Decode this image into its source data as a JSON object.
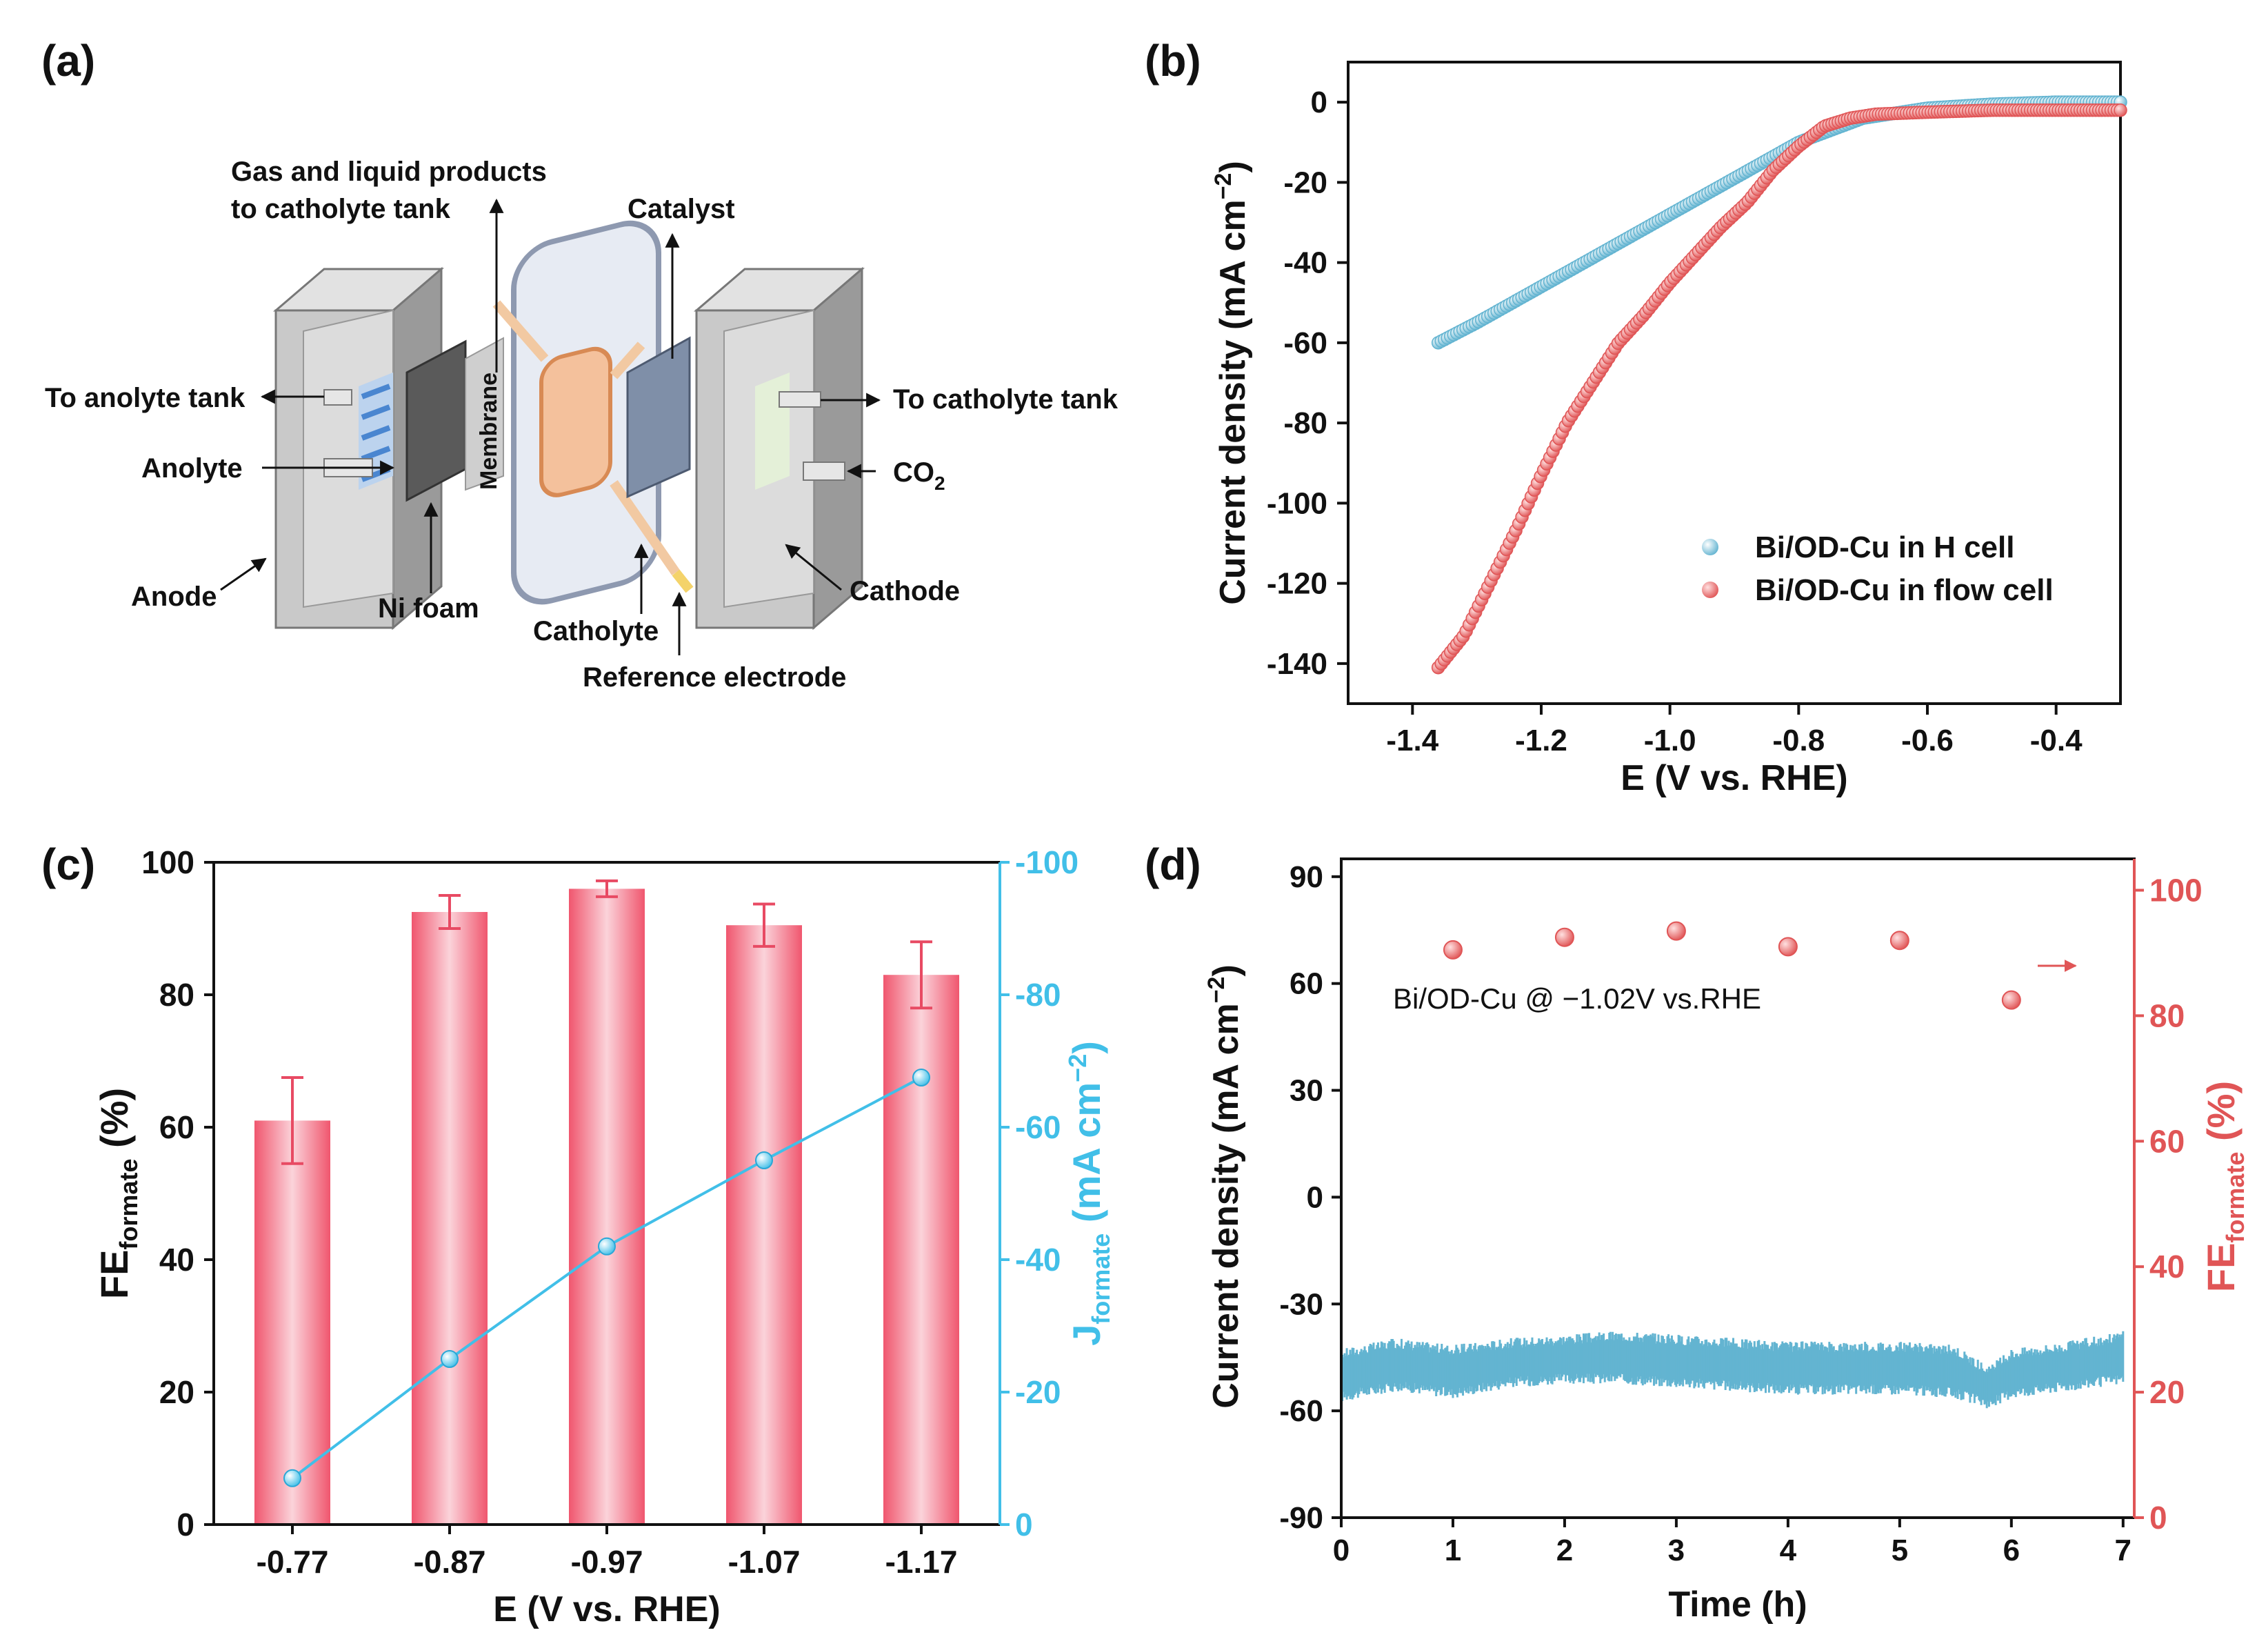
{
  "figure": {
    "panels": [
      "(a)",
      "(b)",
      "(c)",
      "(d)"
    ]
  },
  "schematic": {
    "labels": {
      "products_line1": "Gas and liquid products",
      "products_line2": "to catholyte tank",
      "catalyst": "Catalyst",
      "to_anolyte": "To anolyte tank",
      "to_catholyte": "To catholyte tank",
      "anolyte": "Anolyte",
      "membrane": "Membrane",
      "co2": "CO",
      "co2_sub": "2",
      "anode": "Anode",
      "ni_foam": "Ni foam",
      "catholyte": "Catholyte",
      "cathode": "Cathode",
      "reference": "Reference electrode"
    }
  },
  "chart_data": [
    {
      "panel": "(b)",
      "type": "scatter",
      "xlabel": "E (V vs. RHE)",
      "ylabel": "Current density (mA cm",
      "ylabel_sup": "−2",
      "ylabel_close": ")",
      "xlim": [
        -1.5,
        -0.3
      ],
      "ylim": [
        -150,
        10
      ],
      "xticks": [
        -1.4,
        -1.2,
        -1.0,
        -0.8,
        -0.6,
        -0.4
      ],
      "xtick_labels": [
        "-1.4",
        "-1.2",
        "-1.0",
        "-0.8",
        "-0.6",
        "-0.4"
      ],
      "yticks": [
        0,
        -20,
        -40,
        -60,
        -80,
        -100,
        -120,
        -140
      ],
      "ytick_labels": [
        "0",
        "-20",
        "-40",
        "-60",
        "-80",
        "-100",
        "-120",
        "-140"
      ],
      "legend_position": "bottom-right",
      "series": [
        {
          "name": "Bi/OD-Cu in H cell",
          "color": "#63b4d1",
          "x": [
            -1.36,
            -1.3,
            -1.2,
            -1.1,
            -1.0,
            -0.9,
            -0.8,
            -0.7,
            -0.6,
            -0.5,
            -0.4,
            -0.3
          ],
          "y": [
            -60,
            -55,
            -46,
            -37,
            -28,
            -19,
            -10,
            -4,
            -1.5,
            -0.5,
            0,
            0
          ]
        },
        {
          "name": "Bi/OD-Cu in flow cell",
          "color": "#e05556",
          "x": [
            -1.36,
            -1.32,
            -1.28,
            -1.24,
            -1.2,
            -1.16,
            -1.12,
            -1.08,
            -1.04,
            -1.0,
            -0.96,
            -0.92,
            -0.88,
            -0.84,
            -0.8,
            -0.76,
            -0.72,
            -0.68,
            -0.6,
            -0.5,
            -0.4,
            -0.3
          ],
          "y": [
            -141,
            -133,
            -120,
            -107,
            -93,
            -80,
            -70,
            -60,
            -53,
            -45,
            -38,
            -31,
            -25,
            -17,
            -11,
            -6,
            -4,
            -3,
            -2.5,
            -2,
            -2,
            -2
          ]
        }
      ]
    },
    {
      "panel": "(c)",
      "type": "bar",
      "xlabel": "E (V vs. RHE)",
      "ylabel_main": "FE",
      "ylabel_sub": "formate",
      "ylabel_unit": " (%)",
      "y2label_main": "J",
      "y2label_sub": "formate",
      "y2label_unit": " (mA cm",
      "y2label_sup": "−2",
      "y2label_close": ")",
      "categories": [
        "-0.77",
        "-0.87",
        "-0.97",
        "-1.07",
        "-1.17"
      ],
      "ylim": [
        0,
        100
      ],
      "yticks": [
        0,
        20,
        40,
        60,
        80,
        100
      ],
      "ytick_labels": [
        "0",
        "20",
        "40",
        "60",
        "80",
        "100"
      ],
      "y2lim": [
        0,
        -100
      ],
      "y2ticks": [
        0,
        -20,
        -40,
        -60,
        -80,
        -100
      ],
      "y2tick_labels": [
        "0",
        "-20",
        "-40",
        "-60",
        "-80",
        "-100"
      ],
      "bar_color": "#f0566e",
      "line_color": "#41bfe8",
      "series": [
        {
          "name": "FE formate (%)",
          "values": [
            61,
            92.5,
            96,
            90.5,
            83
          ],
          "errors": [
            6.5,
            2.5,
            1.2,
            3.2,
            5
          ]
        },
        {
          "name": "J formate (mA cm-2)",
          "values": [
            -7,
            -25,
            -42,
            -55,
            -67.5
          ]
        }
      ]
    },
    {
      "panel": "(d)",
      "type": "scatter",
      "xlabel": "Time (h)",
      "ylabel": "Current density (mA cm",
      "ylabel_sup": "−2",
      "ylabel_close": ")",
      "y2label_main": "FE",
      "y2label_sub": "formate",
      "y2label_unit": " (%)",
      "annotation": "Bi/OD-Cu @ −1.02V vs.RHE",
      "xlim": [
        0,
        7.1
      ],
      "xticks": [
        0,
        1,
        2,
        3,
        4,
        5,
        6,
        7
      ],
      "xtick_labels": [
        "0",
        "1",
        "2",
        "3",
        "4",
        "5",
        "6",
        "7"
      ],
      "ylim": [
        -90,
        95
      ],
      "yticks": [
        -90,
        -60,
        -30,
        0,
        30,
        60,
        90
      ],
      "ytick_labels": [
        "-90",
        "-60",
        "-30",
        "0",
        "30",
        "60",
        "90"
      ],
      "y2lim": [
        0,
        105
      ],
      "y2ticks": [
        0,
        20,
        40,
        60,
        80,
        100
      ],
      "y2tick_labels": [
        "0",
        "20",
        "40",
        "60",
        "80",
        "100"
      ],
      "series": [
        {
          "name": "Current density",
          "color": "#63b4d1",
          "x": [
            0,
            0.5,
            1,
            1.5,
            2,
            2.5,
            3,
            3.5,
            4,
            4.5,
            5,
            5.5,
            5.8,
            6,
            6.5,
            7
          ],
          "y_low": [
            -56,
            -53,
            -55,
            -52,
            -51,
            -51,
            -52,
            -53,
            -54,
            -54,
            -54,
            -55,
            -58,
            -55,
            -53,
            -51
          ],
          "y_high": [
            -44,
            -41,
            -43,
            -41,
            -40,
            -39,
            -40,
            -41,
            -42,
            -42,
            -42,
            -43,
            -49,
            -44,
            -42,
            -39
          ]
        },
        {
          "name": "FE formate",
          "color": "#e05556",
          "x": [
            1,
            2,
            3,
            4,
            5,
            6
          ],
          "y": [
            90.5,
            92.5,
            93.5,
            91,
            92,
            82.5
          ]
        }
      ]
    }
  ]
}
